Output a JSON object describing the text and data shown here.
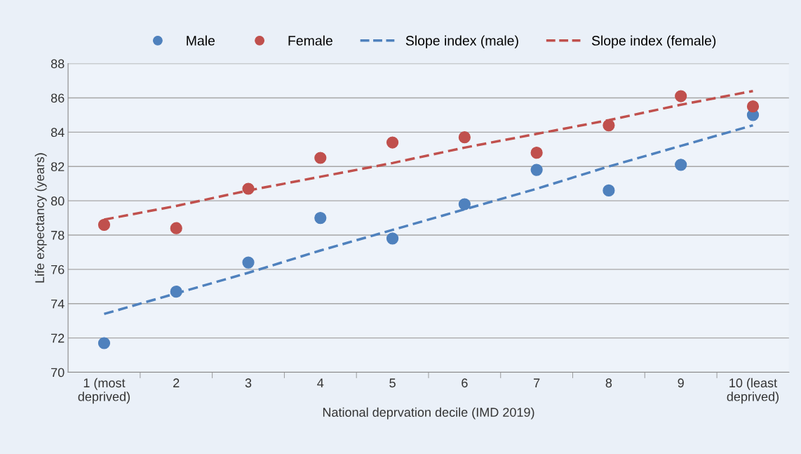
{
  "chart_data": {
    "type": "scatter",
    "xlabel": "National deprvation decile (IMD 2019)",
    "ylabel": "Life expectancy (years)",
    "categories": [
      "1 (most\ndeprived)",
      "2",
      "3",
      "4",
      "5",
      "6",
      "7",
      "8",
      "9",
      "10 (least\ndeprived)"
    ],
    "series": [
      {
        "name": "Male",
        "color": "#4f81bd",
        "marker": "circle",
        "values": [
          71.7,
          74.7,
          76.4,
          79.0,
          77.8,
          79.8,
          81.8,
          80.6,
          82.1,
          85.0
        ]
      },
      {
        "name": "Female",
        "color": "#c0504d",
        "marker": "circle",
        "values": [
          78.6,
          78.4,
          80.7,
          82.5,
          83.4,
          83.7,
          82.8,
          84.4,
          86.1,
          85.5
        ]
      },
      {
        "name": "Slope index (male)",
        "color": "#4f81bd",
        "type": "line",
        "line_style": "dashed",
        "values": [
          73.4,
          74.6,
          75.8,
          77.1,
          78.3,
          79.5,
          80.7,
          82.0,
          83.2,
          84.4
        ]
      },
      {
        "name": "Slope index (female)",
        "color": "#c0504d",
        "type": "line",
        "line_style": "dashed",
        "values": [
          78.9,
          79.7,
          80.6,
          81.4,
          82.2,
          83.1,
          83.9,
          84.7,
          85.6,
          86.4
        ]
      }
    ],
    "ylim": [
      70,
      88
    ],
    "yticks": [
      70,
      72,
      74,
      76,
      78,
      80,
      82,
      84,
      86,
      88
    ],
    "grid": "y",
    "legend": "top"
  }
}
